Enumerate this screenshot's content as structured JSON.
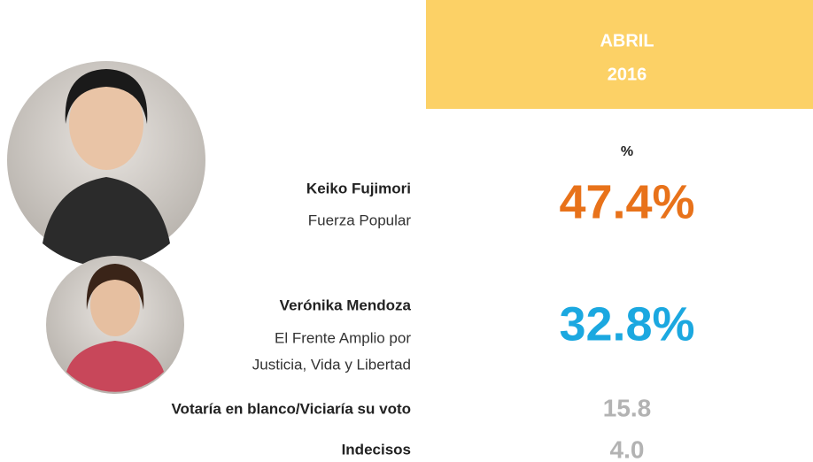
{
  "header": {
    "month": "ABRIL",
    "year": "2016",
    "unit": "%"
  },
  "rows": [
    {
      "name": "Keiko Fujimori",
      "party_lines": [
        "Fuerza Popular"
      ],
      "value": "47.4%"
    },
    {
      "name": "Verónika Mendoza",
      "party_lines": [
        "El Frente Amplio por",
        "Justicia, Vida y Libertad"
      ],
      "value": "32.8%"
    },
    {
      "name": "Votaría en blanco/Viciaría su voto",
      "party_lines": [],
      "value": "15.8"
    },
    {
      "name": "Indecisos",
      "party_lines": [],
      "value": "4.0"
    }
  ]
}
